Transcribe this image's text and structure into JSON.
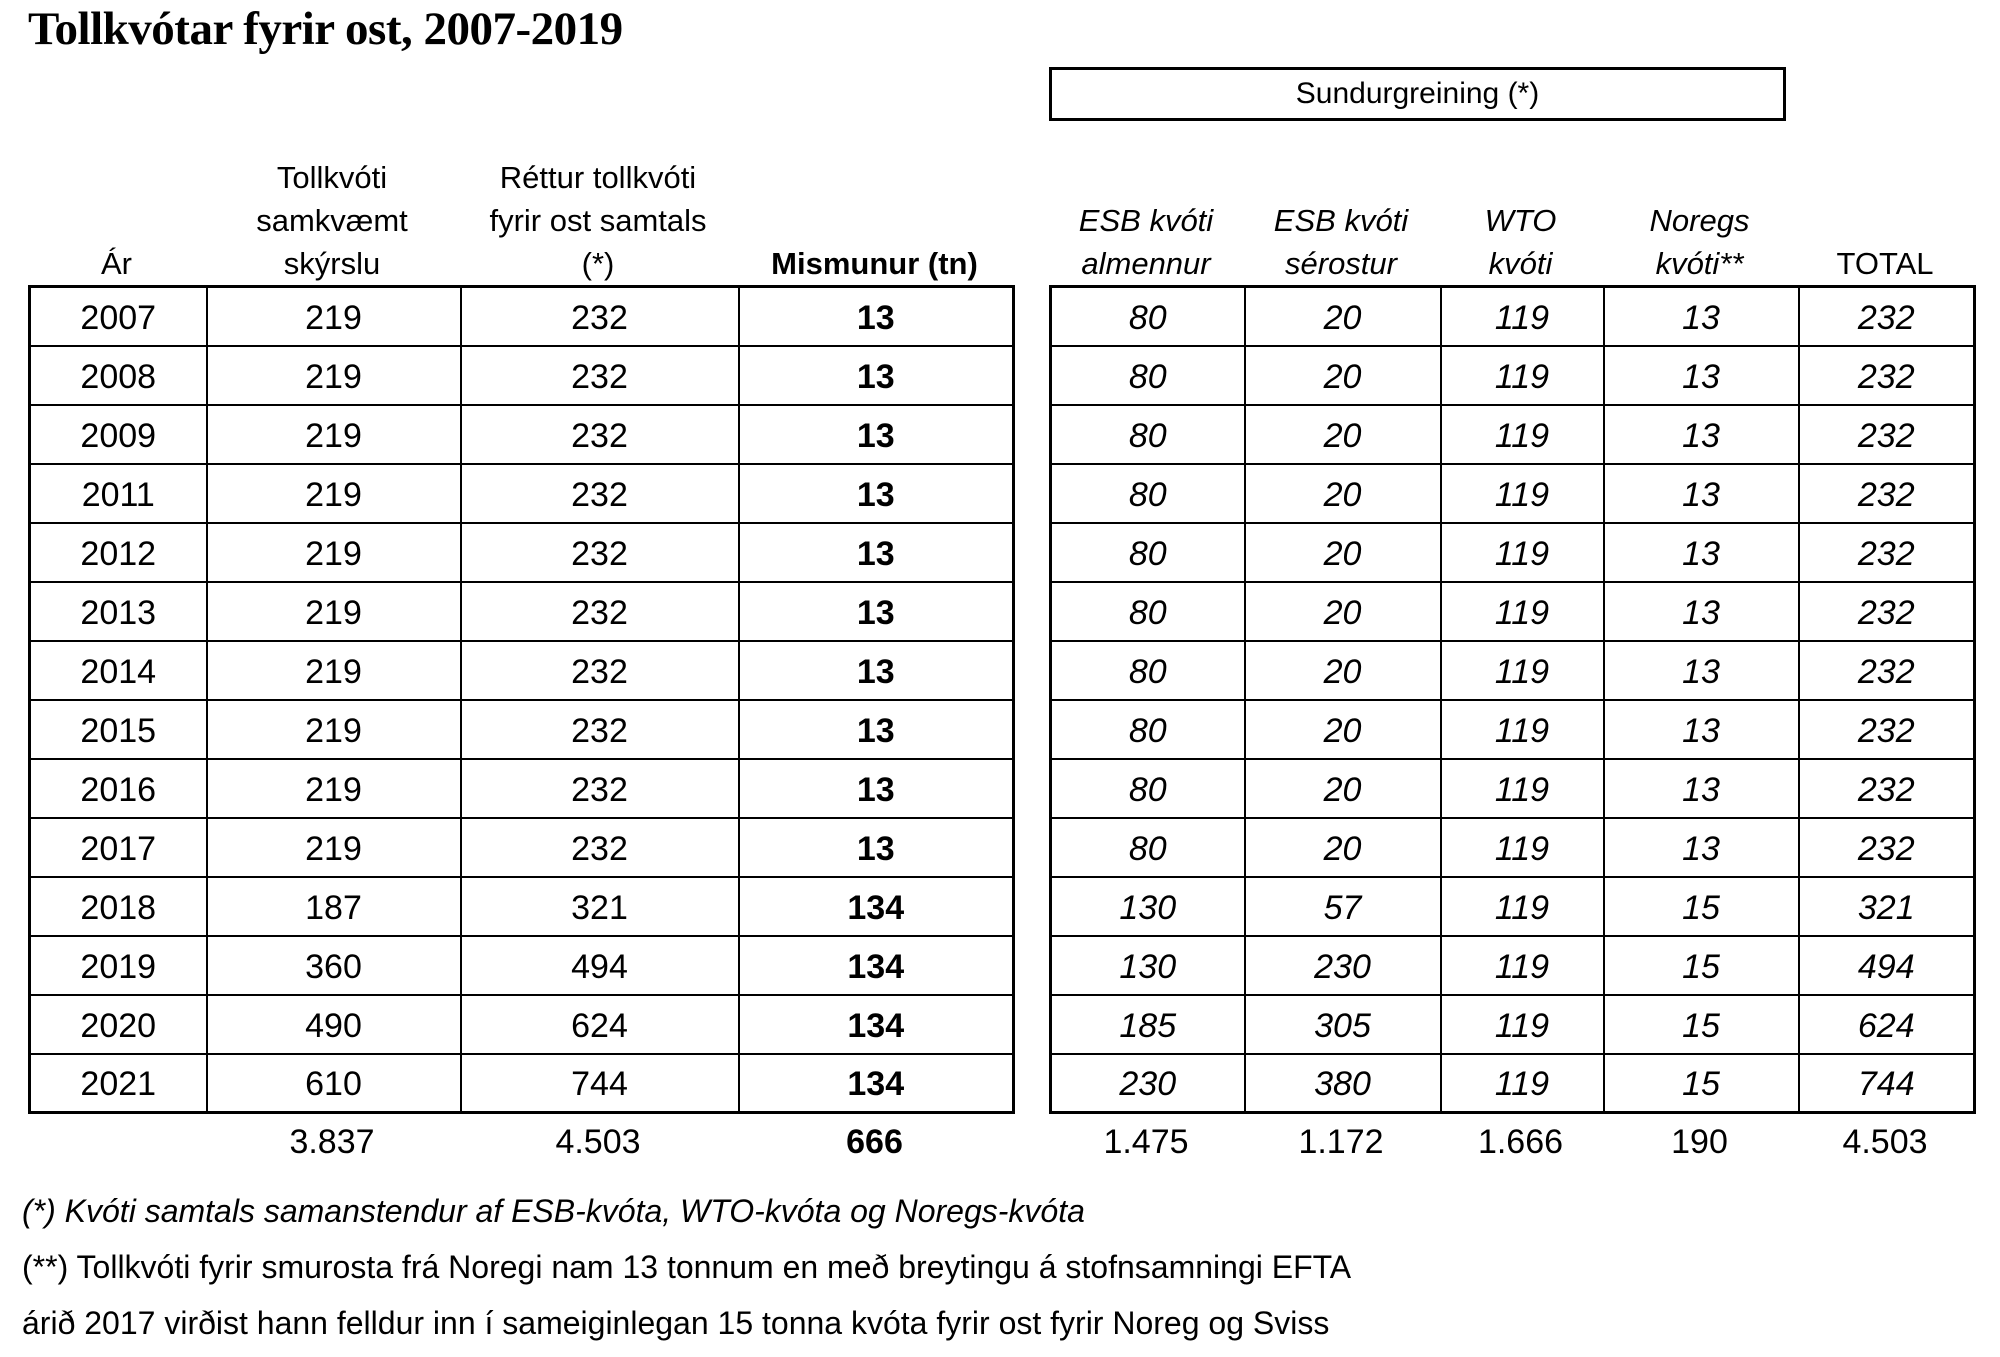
{
  "title": "Tollkvótar fyrir ost, 2007-2019",
  "colors": {
    "text": "#000000",
    "background": "#ffffff",
    "border": "#000000"
  },
  "left_table": {
    "headers": {
      "year": "Ár",
      "reported": [
        "Tollkvóti",
        "samkvæmt",
        "skýrslu"
      ],
      "correct": [
        "Réttur tollkvóti",
        "fyrir ost samtals",
        "(*)"
      ],
      "diff": "Mismunur (tn)"
    },
    "totals": {
      "reported": "3.837",
      "correct": "4.503",
      "diff": "666"
    }
  },
  "right_table": {
    "group_header": "Sundurgreining (*)",
    "headers": {
      "esb_almennur": [
        "ESB kvóti",
        "almennur"
      ],
      "esb_serostur": [
        "ESB kvóti",
        "sérostur"
      ],
      "wto": [
        "WTO",
        "kvóti"
      ],
      "noregs": [
        "Noregs",
        "kvóti**"
      ],
      "total": "TOTAL"
    },
    "totals": {
      "esb_almennur": "1.475",
      "esb_serostur": "1.172",
      "wto": "1.666",
      "noregs": "190",
      "total": "4.503"
    }
  },
  "rows": [
    {
      "year": "2007",
      "reported": "219",
      "correct": "232",
      "diff": "13",
      "esb_almennur": "80",
      "esb_serostur": "20",
      "wto": "119",
      "noregs": "13",
      "total": "232"
    },
    {
      "year": "2008",
      "reported": "219",
      "correct": "232",
      "diff": "13",
      "esb_almennur": "80",
      "esb_serostur": "20",
      "wto": "119",
      "noregs": "13",
      "total": "232"
    },
    {
      "year": "2009",
      "reported": "219",
      "correct": "232",
      "diff": "13",
      "esb_almennur": "80",
      "esb_serostur": "20",
      "wto": "119",
      "noregs": "13",
      "total": "232"
    },
    {
      "year": "2011",
      "reported": "219",
      "correct": "232",
      "diff": "13",
      "esb_almennur": "80",
      "esb_serostur": "20",
      "wto": "119",
      "noregs": "13",
      "total": "232"
    },
    {
      "year": "2012",
      "reported": "219",
      "correct": "232",
      "diff": "13",
      "esb_almennur": "80",
      "esb_serostur": "20",
      "wto": "119",
      "noregs": "13",
      "total": "232"
    },
    {
      "year": "2013",
      "reported": "219",
      "correct": "232",
      "diff": "13",
      "esb_almennur": "80",
      "esb_serostur": "20",
      "wto": "119",
      "noregs": "13",
      "total": "232"
    },
    {
      "year": "2014",
      "reported": "219",
      "correct": "232",
      "diff": "13",
      "esb_almennur": "80",
      "esb_serostur": "20",
      "wto": "119",
      "noregs": "13",
      "total": "232"
    },
    {
      "year": "2015",
      "reported": "219",
      "correct": "232",
      "diff": "13",
      "esb_almennur": "80",
      "esb_serostur": "20",
      "wto": "119",
      "noregs": "13",
      "total": "232"
    },
    {
      "year": "2016",
      "reported": "219",
      "correct": "232",
      "diff": "13",
      "esb_almennur": "80",
      "esb_serostur": "20",
      "wto": "119",
      "noregs": "13",
      "total": "232"
    },
    {
      "year": "2017",
      "reported": "219",
      "correct": "232",
      "diff": "13",
      "esb_almennur": "80",
      "esb_serostur": "20",
      "wto": "119",
      "noregs": "13",
      "total": "232"
    },
    {
      "year": "2018",
      "reported": "187",
      "correct": "321",
      "diff": "134",
      "esb_almennur": "130",
      "esb_serostur": "57",
      "wto": "119",
      "noregs": "15",
      "total": "321"
    },
    {
      "year": "2019",
      "reported": "360",
      "correct": "494",
      "diff": "134",
      "esb_almennur": "130",
      "esb_serostur": "230",
      "wto": "119",
      "noregs": "15",
      "total": "494"
    },
    {
      "year": "2020",
      "reported": "490",
      "correct": "624",
      "diff": "134",
      "esb_almennur": "185",
      "esb_serostur": "305",
      "wto": "119",
      "noregs": "15",
      "total": "624"
    },
    {
      "year": "2021",
      "reported": "610",
      "correct": "744",
      "diff": "134",
      "esb_almennur": "230",
      "esb_serostur": "380",
      "wto": "119",
      "noregs": "15",
      "total": "744"
    }
  ],
  "footnotes": [
    "(*) Kvóti samtals samanstendur af ESB-kvóta, WTO-kvóta og Noregs-kvóta",
    "(**) Tollkvóti fyrir smurosta frá Noregi nam 13 tonnum en með breytingu á stofnsamningi EFTA",
    "árið 2017 virðist hann felldur inn í sameiginlegan 15 tonna kvóta fyrir ost fyrir Noreg og Sviss"
  ]
}
